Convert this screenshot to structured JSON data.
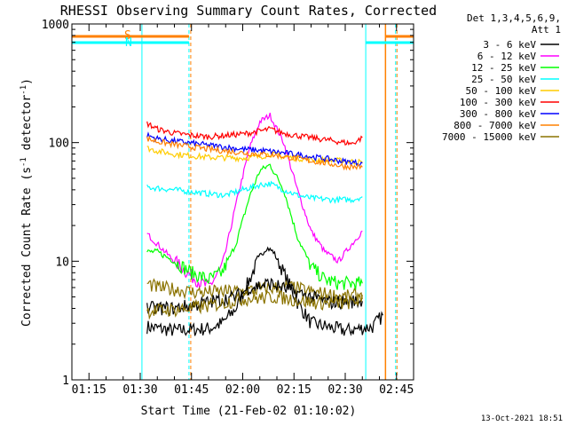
{
  "chart_data": {
    "type": "line",
    "title": "RHESSI Observing Summary Count Rates, Corrected",
    "xlabel": "Start Time (21-Feb-02 01:10:02)",
    "ylabel_main": "Corrected Count Rate (s",
    "ylabel_sup1": "-1",
    "ylabel_mid": " detector",
    "ylabel_sup2": "-1",
    "ylabel_end": ")",
    "yscale": "log",
    "ylim": [
      1,
      1000
    ],
    "xlim_minutes": [
      0,
      100
    ],
    "x_ticks": [
      "01:15",
      "01:30",
      "01:45",
      "02:00",
      "02:15",
      "02:30",
      "02:45"
    ],
    "y_ticks": [
      "1",
      "10",
      "100",
      "1000"
    ],
    "legend_header": [
      "Det 1,3,4,5,6,9,",
      "Att 1"
    ],
    "series": [
      {
        "name": "3 - 6 keV",
        "color": "#000000",
        "points": [
          [
            22,
            2.8
          ],
          [
            30,
            2.6
          ],
          [
            40,
            2.7
          ],
          [
            44,
            3.0
          ],
          [
            48,
            4
          ],
          [
            52,
            7
          ],
          [
            55,
            11
          ],
          [
            57,
            13
          ],
          [
            59,
            12
          ],
          [
            62,
            8
          ],
          [
            66,
            4.5
          ],
          [
            70,
            3
          ],
          [
            80,
            2.6
          ],
          [
            88,
            2.8
          ],
          [
            91,
            3.5
          ]
        ]
      },
      {
        "name": "6 - 12 keV",
        "color": "#ff00ff",
        "points": [
          [
            22,
            17
          ],
          [
            25,
            14
          ],
          [
            30,
            10
          ],
          [
            35,
            7.5
          ],
          [
            40,
            6
          ],
          [
            44,
            9
          ],
          [
            48,
            30
          ],
          [
            52,
            90
          ],
          [
            55,
            150
          ],
          [
            58,
            170
          ],
          [
            62,
            100
          ],
          [
            66,
            40
          ],
          [
            70,
            18
          ],
          [
            74,
            12
          ],
          [
            78,
            10
          ],
          [
            82,
            14
          ],
          [
            85,
            18
          ]
        ]
      },
      {
        "name": "12 - 25 keV",
        "color": "#00ff00",
        "points": [
          [
            22,
            12
          ],
          [
            25,
            12
          ],
          [
            30,
            10
          ],
          [
            35,
            8
          ],
          [
            40,
            7
          ],
          [
            44,
            8
          ],
          [
            48,
            14
          ],
          [
            52,
            35
          ],
          [
            55,
            58
          ],
          [
            58,
            65
          ],
          [
            62,
            40
          ],
          [
            66,
            16
          ],
          [
            70,
            9
          ],
          [
            74,
            7
          ],
          [
            78,
            6.5
          ],
          [
            85,
            6.5
          ]
        ]
      },
      {
        "name": "25 - 50 keV",
        "color": "#00ffff",
        "points": [
          [
            22,
            42
          ],
          [
            30,
            40
          ],
          [
            40,
            37
          ],
          [
            45,
            36
          ],
          [
            50,
            40
          ],
          [
            55,
            44
          ],
          [
            58,
            45
          ],
          [
            62,
            40
          ],
          [
            66,
            36
          ],
          [
            70,
            34
          ],
          [
            76,
            33
          ],
          [
            82,
            33
          ],
          [
            85,
            35
          ]
        ]
      },
      {
        "name": "50 - 100 keV",
        "color": "#ffcc00",
        "points": [
          [
            22,
            90
          ],
          [
            25,
            85
          ],
          [
            30,
            80
          ],
          [
            40,
            75
          ],
          [
            50,
            74
          ],
          [
            55,
            76
          ],
          [
            58,
            80
          ],
          [
            62,
            76
          ],
          [
            70,
            72
          ],
          [
            80,
            70
          ],
          [
            85,
            68
          ]
        ]
      },
      {
        "name": "100 - 300 keV",
        "color": "#ff0000",
        "points": [
          [
            22,
            145
          ],
          [
            25,
            130
          ],
          [
            30,
            120
          ],
          [
            35,
            115
          ],
          [
            40,
            112
          ],
          [
            50,
            118
          ],
          [
            55,
            125
          ],
          [
            58,
            130
          ],
          [
            62,
            120
          ],
          [
            68,
            112
          ],
          [
            75,
            105
          ],
          [
            82,
            98
          ],
          [
            85,
            110
          ]
        ]
      },
      {
        "name": "300 - 800 keV",
        "color": "#0000ff",
        "points": [
          [
            22,
            115
          ],
          [
            25,
            108
          ],
          [
            30,
            103
          ],
          [
            35,
            99
          ],
          [
            40,
            95
          ],
          [
            50,
            88
          ],
          [
            55,
            86
          ],
          [
            60,
            83
          ],
          [
            65,
            80
          ],
          [
            70,
            76
          ],
          [
            76,
            72
          ],
          [
            80,
            69
          ],
          [
            85,
            67
          ]
        ]
      },
      {
        "name": "800 - 7000 keV",
        "color": "#ff8000",
        "points": [
          [
            22,
            108
          ],
          [
            25,
            102
          ],
          [
            30,
            96
          ],
          [
            35,
            92
          ],
          [
            40,
            88
          ],
          [
            50,
            82
          ],
          [
            55,
            80
          ],
          [
            60,
            78
          ],
          [
            65,
            74
          ],
          [
            70,
            70
          ],
          [
            76,
            66
          ],
          [
            80,
            63
          ],
          [
            85,
            62
          ]
        ]
      },
      {
        "name": "7000 - 15000 keV",
        "color": "#8b7300",
        "points": [
          [
            22,
            6.5
          ],
          [
            25,
            6
          ],
          [
            30,
            5.8
          ],
          [
            35,
            5.5
          ],
          [
            40,
            5.5
          ],
          [
            50,
            5.6
          ],
          [
            55,
            5.8
          ],
          [
            60,
            6
          ],
          [
            65,
            6
          ],
          [
            70,
            5.5
          ],
          [
            76,
            5.2
          ],
          [
            80,
            5
          ],
          [
            85,
            5.2
          ]
        ]
      },
      {
        "name": "",
        "color": "#000000",
        "points": [
          [
            22,
            4
          ],
          [
            30,
            4
          ],
          [
            40,
            4.5
          ],
          [
            48,
            5
          ],
          [
            52,
            6
          ],
          [
            58,
            6.5
          ],
          [
            65,
            5.5
          ],
          [
            75,
            4.5
          ],
          [
            85,
            4.6
          ]
        ]
      },
      {
        "name": "",
        "color": "#8b7300",
        "points": [
          [
            22,
            3.8
          ],
          [
            30,
            3.9
          ],
          [
            40,
            4.2
          ],
          [
            50,
            4.8
          ],
          [
            60,
            5
          ],
          [
            70,
            4.5
          ],
          [
            80,
            4.4
          ],
          [
            85,
            4.8
          ]
        ]
      }
    ],
    "markers": {
      "S_label": "S",
      "N_label": "N",
      "cyan_color": "#00ffff",
      "orange_color": "#ff8000",
      "saa_start_min": 21,
      "saa_end_min": 91,
      "night_start_min": 20.5,
      "night_end_min": 86,
      "right_night_min": 95
    }
  },
  "footer": {
    "date": "13-Oct-2021 18:51"
  }
}
